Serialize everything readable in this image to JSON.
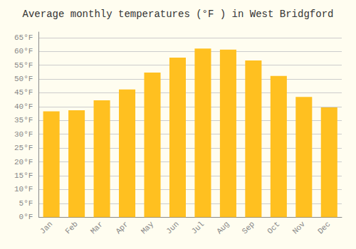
{
  "chart_data": {
    "type": "bar",
    "title": "Average monthly temperatures (°F ) in West Bridgford",
    "categories": [
      "Jan",
      "Feb",
      "Mar",
      "Apr",
      "May",
      "Jun",
      "Jul",
      "Aug",
      "Sep",
      "Oct",
      "Nov",
      "Dec"
    ],
    "values": [
      38.3,
      38.7,
      42.3,
      46.2,
      52.3,
      57.7,
      61.0,
      60.6,
      56.7,
      51.1,
      43.5,
      39.7
    ],
    "color": "#FFC020",
    "ylim": [
      0,
      67
    ],
    "yticks": [
      {
        "value": 0,
        "label": "0°F"
      },
      {
        "value": 5,
        "label": "5°F"
      },
      {
        "value": 10,
        "label": "10°F"
      },
      {
        "value": 15,
        "label": "15°F"
      },
      {
        "value": 20,
        "label": "20°F"
      },
      {
        "value": 25,
        "label": "25°F"
      },
      {
        "value": 30,
        "label": "30°F"
      },
      {
        "value": 35,
        "label": "35°F"
      },
      {
        "value": 40,
        "label": "40°F"
      },
      {
        "value": 45,
        "label": "45°F"
      },
      {
        "value": 50,
        "label": "50°F"
      },
      {
        "value": 55,
        "label": "55°F"
      },
      {
        "value": 60,
        "label": "60°F"
      },
      {
        "value": 65,
        "label": "65°F"
      }
    ],
    "grid": true
  }
}
